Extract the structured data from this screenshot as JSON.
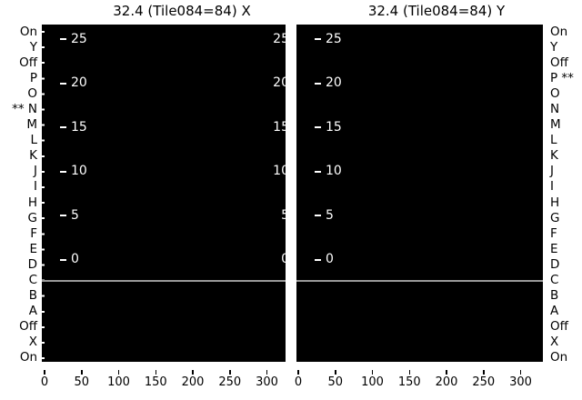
{
  "chart_data": [
    {
      "type": "heatmap",
      "title": "32.4 (Tile084=84) X",
      "x_ticks": [
        0,
        50,
        100,
        150,
        200,
        250,
        300
      ],
      "y_ticks": [
        25,
        20,
        15,
        10,
        5,
        0
      ],
      "row_labels": [
        "On",
        "Y",
        "Off",
        "P",
        "O",
        "N",
        "M",
        "L",
        "K",
        "J",
        "I",
        "H",
        "G",
        "F",
        "E",
        "D",
        "C",
        "B",
        "A",
        "Off",
        "X",
        "On"
      ],
      "values": "uniform black field (no visible data points)",
      "annotations": [
        "white horizontal separator line between rows C and B",
        "asterisk marker ** at row N on left axis",
        "asterisk marker ** at row P on right axis"
      ],
      "background": "#000000",
      "grid": false,
      "legend": false
    },
    {
      "type": "heatmap",
      "title": "32.4 (Tile084=84) Y",
      "x_ticks": [
        0,
        50,
        100,
        150,
        200,
        250,
        300
      ],
      "y_ticks": [
        25,
        20,
        15,
        10,
        5,
        0
      ],
      "row_labels": [
        "On",
        "Y",
        "Off",
        "P",
        "O",
        "N",
        "M",
        "L",
        "K",
        "J",
        "I",
        "H",
        "G",
        "F",
        "E",
        "D",
        "C",
        "B",
        "A",
        "Off",
        "X",
        "On"
      ],
      "values": "uniform black field (no visible data points)",
      "annotations": [
        "white horizontal separator line between rows C and B"
      ],
      "background": "#000000",
      "grid": false,
      "legend": false
    }
  ],
  "figure": {
    "panels": [
      {
        "title": "32.4 (Tile084=84) X"
      },
      {
        "title": "32.4 (Tile084=84) Y"
      }
    ],
    "y_axis": {
      "left_labels": [
        "On",
        "Y",
        "Off",
        "P",
        "O",
        "** N",
        "M",
        "L",
        "K",
        "J",
        "I",
        "H",
        "G",
        "F",
        "E",
        "D",
        "C",
        "B",
        "A",
        "Off",
        "X",
        "On"
      ],
      "right_labels": [
        "On",
        "Y",
        "Off",
        "P **",
        "O",
        "N",
        "M",
        "L",
        "K",
        "J",
        "I",
        "H",
        "G",
        "F",
        "E",
        "D",
        "C",
        "B",
        "A",
        "Off",
        "X",
        "On"
      ],
      "tick_labels": [
        "25",
        "20",
        "15",
        "10",
        "5",
        "0"
      ]
    },
    "x_axis": {
      "tick_labels": [
        "0",
        "50",
        "100",
        "150",
        "200",
        "250",
        "300"
      ]
    },
    "colors": {
      "panel_bg": "#000000",
      "inner_text": "#ffffff",
      "outer_text": "#000000",
      "separator_line": "#ffffff"
    }
  }
}
